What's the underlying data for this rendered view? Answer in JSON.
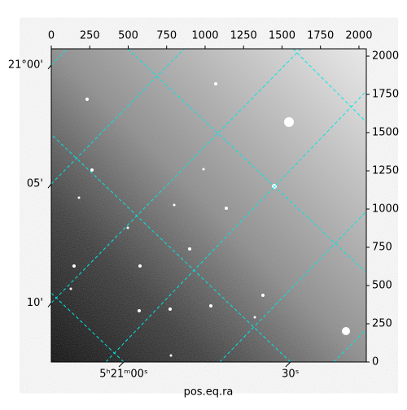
{
  "chart_data": {
    "type": "image",
    "xlabel": "pos.eq.ra",
    "xlim": [
      0,
      2048
    ],
    "ylim": [
      0,
      2048
    ],
    "xticks": [
      0,
      250,
      500,
      750,
      1000,
      1250,
      1500,
      1750,
      2000
    ],
    "yticks": [
      0,
      250,
      500,
      750,
      1000,
      1250,
      1500,
      1750,
      2000
    ],
    "ra_ticks": [
      {
        "value": 471,
        "label": "5ʰ21ᵐ00ˢ"
      },
      {
        "value": 1555,
        "label": "30ˢ"
      }
    ],
    "dec_ticks": [
      {
        "value": 1942,
        "label": "21°00'"
      },
      {
        "value": 1164,
        "label": "05'"
      },
      {
        "value": 386,
        "label": "10'"
      }
    ],
    "grid_color": "#00e5e5"
  }
}
